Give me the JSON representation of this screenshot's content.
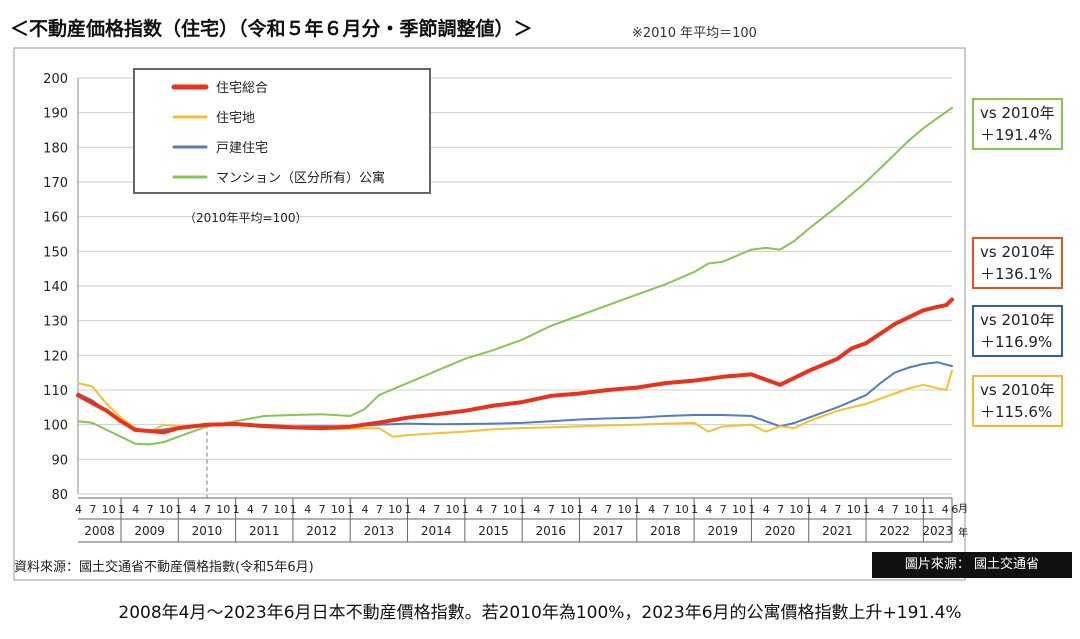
{
  "header": {
    "title": "＜不動産価格指数（住宅）（令和５年６月分・季節調整値）＞",
    "base_note": "※2010 年平均＝100"
  },
  "chart_data": {
    "type": "line",
    "inner_note": "（2010年平均=100）",
    "ylim": [
      80,
      200
    ],
    "yticks": [
      "80",
      "90",
      "100",
      "110",
      "120",
      "130",
      "140",
      "150",
      "160",
      "170",
      "180",
      "190",
      "200"
    ],
    "years": [
      "2008",
      "2009",
      "2010",
      "2011",
      "2012",
      "2013",
      "2014",
      "2015",
      "2016",
      "2017",
      "2018",
      "2019",
      "2020",
      "2021",
      "2022",
      "2023"
    ],
    "month_ticks": [
      "4",
      "7",
      "10",
      "1"
    ],
    "month_ticks_last": [
      "1",
      "4",
      "6"
    ],
    "month_unit": "月",
    "year_unit": "年",
    "series": [
      {
        "name": "住宅総合",
        "color": "#e8321c",
        "width": 4,
        "points": [
          [
            2008.25,
            108.5
          ],
          [
            2008.75,
            104
          ],
          [
            2009.0,
            101
          ],
          [
            2009.25,
            98.5
          ],
          [
            2009.75,
            97.8
          ],
          [
            2010.0,
            99
          ],
          [
            2010.5,
            100
          ],
          [
            2011.0,
            100.2
          ],
          [
            2011.5,
            99.6
          ],
          [
            2012.0,
            99.2
          ],
          [
            2012.5,
            99
          ],
          [
            2013.0,
            99.4
          ],
          [
            2013.5,
            100.6
          ],
          [
            2014.0,
            102
          ],
          [
            2014.5,
            103
          ],
          [
            2015.0,
            104
          ],
          [
            2015.5,
            105.5
          ],
          [
            2016.0,
            106.5
          ],
          [
            2016.5,
            108.3
          ],
          [
            2017.0,
            109
          ],
          [
            2017.5,
            110
          ],
          [
            2018.0,
            110.7
          ],
          [
            2018.5,
            112
          ],
          [
            2019.0,
            112.7
          ],
          [
            2019.5,
            113.8
          ],
          [
            2020.0,
            114.5
          ],
          [
            2020.25,
            113
          ],
          [
            2020.5,
            111.5
          ],
          [
            2020.75,
            113.5
          ],
          [
            2021.0,
            115.5
          ],
          [
            2021.5,
            119
          ],
          [
            2021.75,
            122
          ],
          [
            2022.0,
            123.5
          ],
          [
            2022.5,
            129
          ],
          [
            2022.75,
            131
          ],
          [
            2023.0,
            133
          ],
          [
            2023.25,
            134
          ],
          [
            2023.4,
            134.5
          ],
          [
            2023.5,
            136.1
          ]
        ]
      },
      {
        "name": "住宅地",
        "color": "#f8c030",
        "width": 2,
        "points": [
          [
            2008.25,
            112
          ],
          [
            2008.5,
            111
          ],
          [
            2008.75,
            106
          ],
          [
            2009.0,
            102
          ],
          [
            2009.25,
            99
          ],
          [
            2009.5,
            98
          ],
          [
            2009.75,
            100
          ],
          [
            2010.0,
            99.5
          ],
          [
            2010.5,
            100
          ],
          [
            2011.0,
            100.5
          ],
          [
            2011.5,
            99.3
          ],
          [
            2012.0,
            99
          ],
          [
            2012.5,
            98.7
          ],
          [
            2013.0,
            98.8
          ],
          [
            2013.5,
            99
          ],
          [
            2013.75,
            96.5
          ],
          [
            2014.0,
            97
          ],
          [
            2014.5,
            97.5
          ],
          [
            2015.0,
            98
          ],
          [
            2015.5,
            98.7
          ],
          [
            2016.0,
            99
          ],
          [
            2016.5,
            99.2
          ],
          [
            2017.0,
            99.5
          ],
          [
            2017.5,
            99.8
          ],
          [
            2018.0,
            100
          ],
          [
            2018.5,
            100.3
          ],
          [
            2019.0,
            100.5
          ],
          [
            2019.25,
            98
          ],
          [
            2019.5,
            99.5
          ],
          [
            2020.0,
            100
          ],
          [
            2020.25,
            98
          ],
          [
            2020.5,
            99.5
          ],
          [
            2020.75,
            99
          ],
          [
            2021.0,
            101
          ],
          [
            2021.25,
            102.5
          ],
          [
            2021.5,
            104
          ],
          [
            2022.0,
            106
          ],
          [
            2022.5,
            109
          ],
          [
            2022.75,
            110.5
          ],
          [
            2023.0,
            111.5
          ],
          [
            2023.25,
            110.5
          ],
          [
            2023.4,
            110
          ],
          [
            2023.5,
            115.6
          ]
        ]
      },
      {
        "name": "戸建住宅",
        "color": "#4f7ec4",
        "width": 2,
        "points": [
          [
            2008.25,
            109
          ],
          [
            2008.5,
            107
          ],
          [
            2008.75,
            104
          ],
          [
            2009.0,
            101
          ],
          [
            2009.25,
            98.8
          ],
          [
            2009.5,
            98.3
          ],
          [
            2009.75,
            98.6
          ],
          [
            2010.0,
            99.2
          ],
          [
            2010.5,
            100
          ],
          [
            2011.0,
            100
          ],
          [
            2011.5,
            100
          ],
          [
            2012.0,
            99.5
          ],
          [
            2012.5,
            99.6
          ],
          [
            2013.0,
            99.5
          ],
          [
            2013.5,
            100
          ],
          [
            2014.0,
            100.3
          ],
          [
            2014.5,
            100.1
          ],
          [
            2015.0,
            100.2
          ],
          [
            2015.5,
            100.3
          ],
          [
            2016.0,
            100.5
          ],
          [
            2016.5,
            101
          ],
          [
            2017.0,
            101.5
          ],
          [
            2017.5,
            101.8
          ],
          [
            2018.0,
            102
          ],
          [
            2018.5,
            102.5
          ],
          [
            2019.0,
            102.8
          ],
          [
            2019.5,
            102.8
          ],
          [
            2020.0,
            102.5
          ],
          [
            2020.25,
            101
          ],
          [
            2020.5,
            99.5
          ],
          [
            2020.75,
            100.5
          ],
          [
            2021.0,
            102
          ],
          [
            2021.5,
            105
          ],
          [
            2022.0,
            108.5
          ],
          [
            2022.25,
            112
          ],
          [
            2022.5,
            115
          ],
          [
            2022.75,
            116.5
          ],
          [
            2023.0,
            117.5
          ],
          [
            2023.25,
            118
          ],
          [
            2023.5,
            116.9
          ]
        ]
      },
      {
        "name": "マンション（区分所有）公寓",
        "color": "#88c654",
        "width": 2,
        "points": [
          [
            2008.25,
            101
          ],
          [
            2008.5,
            100.5
          ],
          [
            2008.75,
            98.5
          ],
          [
            2009.0,
            96.5
          ],
          [
            2009.25,
            94.5
          ],
          [
            2009.5,
            94.3
          ],
          [
            2009.75,
            95
          ],
          [
            2010.0,
            96.5
          ],
          [
            2010.25,
            98
          ],
          [
            2010.5,
            99.5
          ],
          [
            2011.0,
            101
          ],
          [
            2011.5,
            102.5
          ],
          [
            2012.0,
            102.8
          ],
          [
            2012.5,
            103
          ],
          [
            2013.0,
            102.5
          ],
          [
            2013.25,
            104.5
          ],
          [
            2013.5,
            108.5
          ],
          [
            2014.0,
            112
          ],
          [
            2014.5,
            115.5
          ],
          [
            2015.0,
            119
          ],
          [
            2015.5,
            121.5
          ],
          [
            2016.0,
            124.5
          ],
          [
            2016.5,
            128.5
          ],
          [
            2017.0,
            131.5
          ],
          [
            2017.5,
            134.5
          ],
          [
            2018.0,
            137.5
          ],
          [
            2018.5,
            140.5
          ],
          [
            2019.0,
            144
          ],
          [
            2019.25,
            146.5
          ],
          [
            2019.5,
            147
          ],
          [
            2020.0,
            150.5
          ],
          [
            2020.25,
            151
          ],
          [
            2020.5,
            150.5
          ],
          [
            2020.75,
            153
          ],
          [
            2021.0,
            156.5
          ],
          [
            2021.5,
            163
          ],
          [
            2022.0,
            170
          ],
          [
            2022.5,
            178
          ],
          [
            2022.75,
            182
          ],
          [
            2023.0,
            185.5
          ],
          [
            2023.25,
            188.5
          ],
          [
            2023.5,
            191.4
          ]
        ]
      }
    ]
  },
  "callouts": [
    {
      "line1": "vs 2010年",
      "line2": "＋191.4%",
      "color": "#88c654"
    },
    {
      "line1": "vs 2010年",
      "line2": "＋136.1%",
      "color": "#e8521c"
    },
    {
      "line1": "vs 2010年",
      "line2": "＋116.9%",
      "color": "#2f5fb4"
    },
    {
      "line1": "vs 2010年",
      "line2": "＋115.6%",
      "color": "#f8b830"
    }
  ],
  "footer": {
    "source_left": "資料來源：國土交通省不動産價格指數(令和5年6月)",
    "source_right": "圖片來源： 國土交通省",
    "caption": "2008年4月～2023年6月日本不動産價格指數。若2010年為100%，2023年6月的公寓價格指數上升+191.4%"
  }
}
